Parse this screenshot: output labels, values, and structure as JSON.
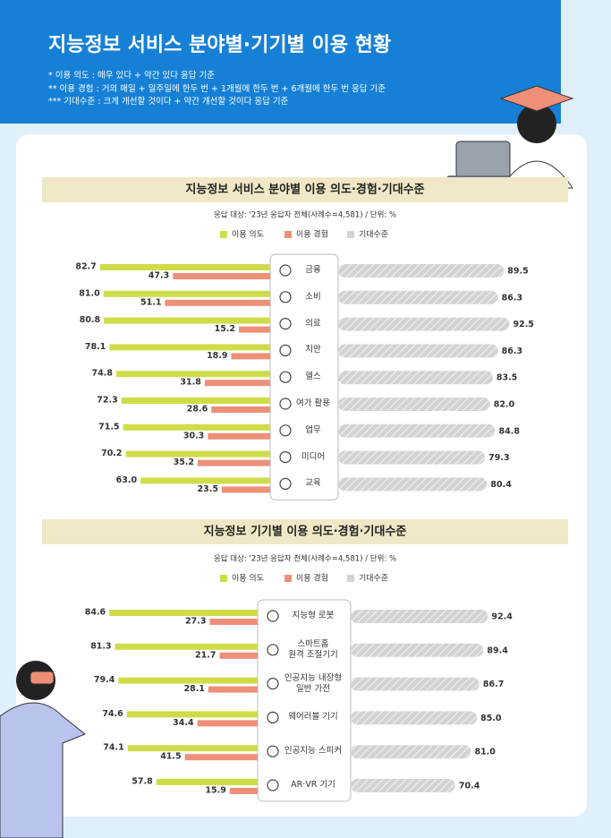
{
  "header": {
    "title": "지능정보 서비스 분야별·기기별 이용 현황",
    "notes": [
      "* 이용 의도 : 매우 있다 + 약간 있다 응답 기준",
      "** 이용 경험 : 거의 매일 + 일주일에 한두 번 + 1개월에 한두 번 + 6개월에 한두 번 응답 기준",
      "*** 기대수준 : 크게 개선할 것이다 + 약간 개선할 것이다 응답 기준"
    ]
  },
  "chart_data": [
    {
      "type": "butterfly-bar",
      "title": "지능정보 서비스 분야별 이용 의도·경험·기대수준",
      "subtitle": "응답 대상: '23년 응답자 전체(사례수=4,581) / 단위: %",
      "categories": [
        "금융",
        "소비",
        "의료",
        "치안",
        "헬스",
        "여가 활용",
        "업무",
        "미디어",
        "교육"
      ],
      "series": [
        {
          "name": "이용 의도",
          "color": "#cfdc4a",
          "side": "left",
          "values": [
            82.7,
            81.0,
            80.8,
            78.1,
            74.8,
            72.3,
            71.5,
            70.2,
            63.0
          ],
          "value_labels": [
            "82.7",
            "81.0",
            "80.8",
            "78.1",
            "74.8",
            "72.3",
            "71.5",
            "70.2",
            "63.0"
          ]
        },
        {
          "name": "이용 경험",
          "color": "#ee8f78",
          "side": "left",
          "values": [
            47.3,
            51.1,
            15.2,
            18.9,
            31.8,
            28.6,
            30.3,
            35.2,
            23.5
          ],
          "value_labels": [
            "47.3",
            "51.1",
            "15.2",
            "18.9",
            "31.8",
            "28.6",
            "30.3",
            "35.2",
            "23.5"
          ]
        },
        {
          "name": "기대수준",
          "color": "#d3d3d3",
          "side": "right",
          "values": [
            89.5,
            86.3,
            92.5,
            86.3,
            83.5,
            82.0,
            84.8,
            79.3,
            80.4
          ],
          "value_labels": [
            "89.5",
            "86.3",
            "92.5",
            "86.3",
            "83.5",
            "82.0",
            "84.8",
            "79.3",
            "80.4"
          ]
        }
      ]
    },
    {
      "type": "butterfly-bar",
      "title": "지능정보 기기별 이용 의도·경험·기대수준",
      "subtitle": "응답 대상: '23년 응답자 전체(사례수=4,581) / 단위: %",
      "categories": [
        "지능형 로봇",
        "스마트홈\n원격 조절기기",
        "인공지능 내장형\n일반 가전",
        "웨어러블 기기",
        "인공지능 스피커",
        "AR·VR 기기"
      ],
      "series": [
        {
          "name": "이용 의도",
          "color": "#cfdc4a",
          "side": "left",
          "values": [
            84.6,
            81.3,
            79.4,
            74.6,
            74.1,
            57.8
          ],
          "value_labels": [
            "84.6",
            "81.3",
            "79.4",
            "74.6",
            "74.1",
            "57.8"
          ]
        },
        {
          "name": "이용 경험",
          "color": "#ee8f78",
          "side": "left",
          "values": [
            27.3,
            21.7,
            28.1,
            34.4,
            41.5,
            15.9
          ],
          "value_labels": [
            "27.3",
            "21.7",
            "28.1",
            "34.4",
            "41.5",
            "15.9"
          ]
        },
        {
          "name": "기대수준",
          "color": "#d3d3d3",
          "side": "right",
          "values": [
            92.4,
            89.4,
            86.7,
            85.0,
            81.0,
            70.4
          ],
          "value_labels": [
            "92.4",
            "89.4",
            "86.7",
            "85.0",
            "81.0",
            "70.4"
          ]
        }
      ]
    }
  ]
}
